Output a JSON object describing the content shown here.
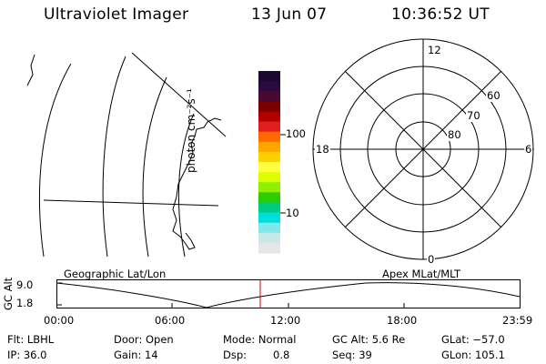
{
  "header": {
    "title": "Ultraviolet Imager",
    "date": "13 Jun 07",
    "time": "10:36:52 UT"
  },
  "colorbar": {
    "unit": "photon cm⁻²s⁻¹",
    "ticks": [
      "100",
      "10"
    ],
    "colors": [
      "#1a0a30",
      "#2a0a40",
      "#4a0a30",
      "#7a0000",
      "#b00000",
      "#e02020",
      "#ff6a00",
      "#ffa500",
      "#ffd000",
      "#ffff40",
      "#ddff00",
      "#90ee00",
      "#2ecc00",
      "#00cc80",
      "#00dddd",
      "#80e8e8",
      "#c8e8e8",
      "#e6e6e6"
    ]
  },
  "polar_plot": {
    "labels": {
      "top": "12",
      "bottom": "0",
      "left": "18",
      "right": "6",
      "r60": "60",
      "r70": "70",
      "r80": "80"
    }
  },
  "timeline": {
    "left_title": "Geographic Lat/Lon",
    "right_title": "Apex MLat/MLT",
    "ylabel": "GC Alt",
    "ytick_top": "9.0",
    "ytick_bottom": "1.8",
    "xticks": [
      "00:00",
      "06:00",
      "12:00",
      "18:00",
      "23:59"
    ],
    "current_marker_color": "#cc0000"
  },
  "footer": {
    "flt": "Flt: LBHL",
    "door": "Door: Open",
    "mode": "Mode: Normal",
    "gc_alt": "GC Alt: 5.6 Re",
    "glat": "GLat: −57.0",
    "ip": "IP: 36.0",
    "gain": "Gain: 14",
    "dsp_label": "Dsp:",
    "dsp_value": "0.8",
    "seq": "Seq: 39",
    "glon": "GLon: 105.1"
  }
}
